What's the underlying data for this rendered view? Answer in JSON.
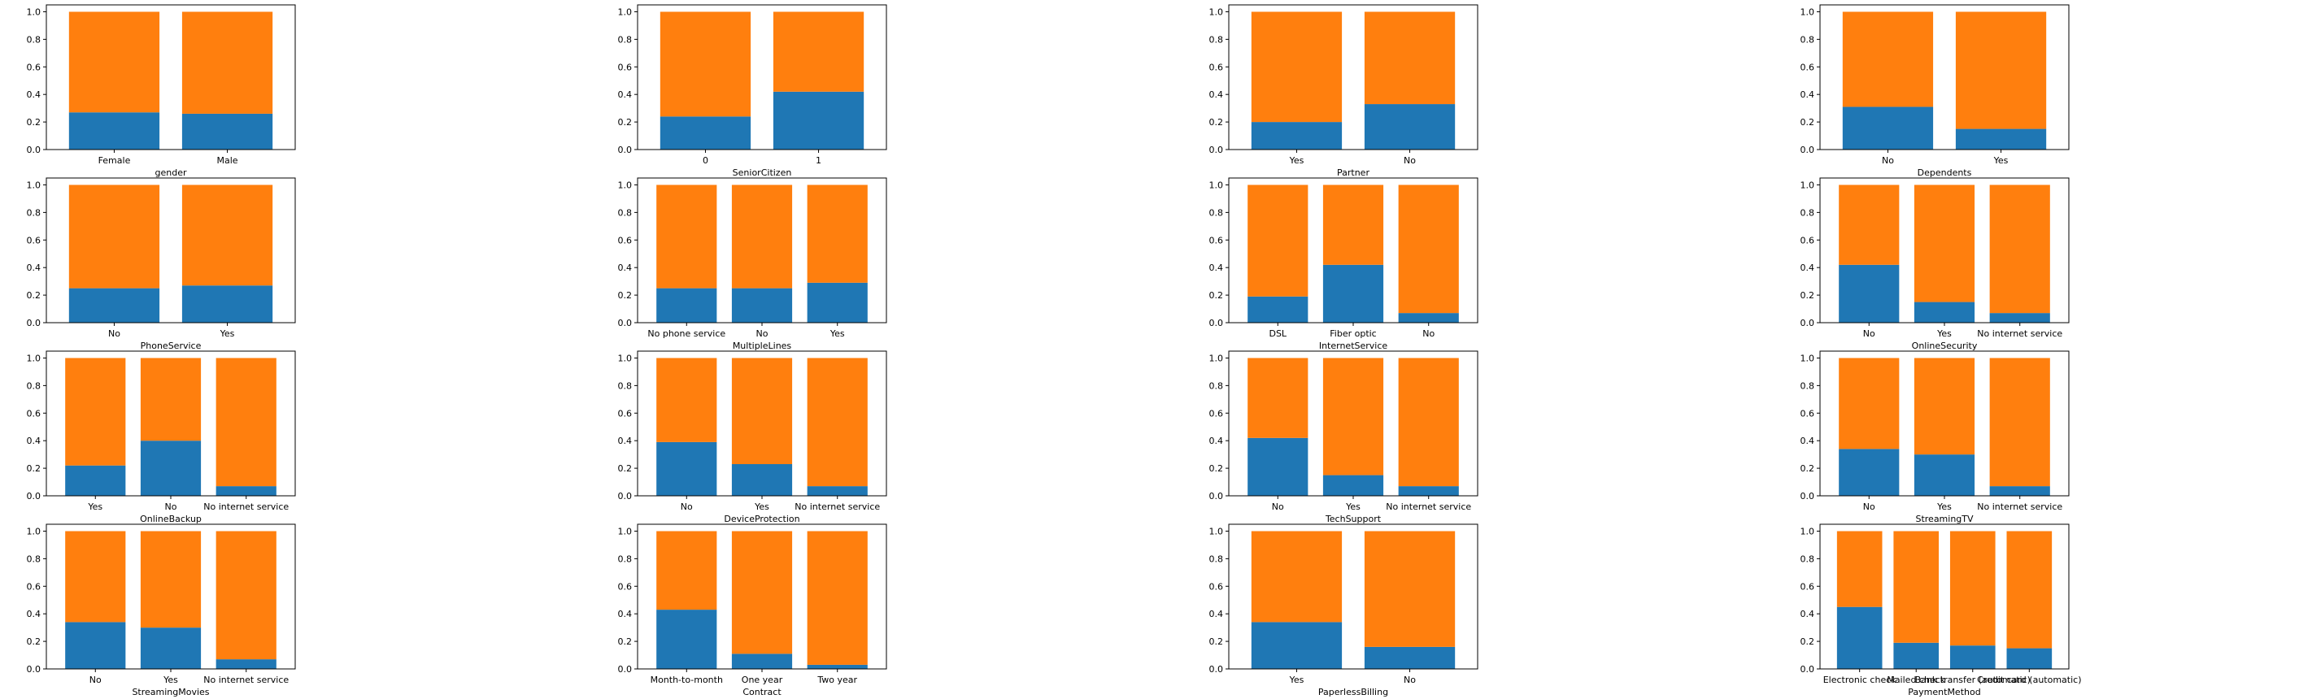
{
  "colors": {
    "series_0": "#1f77b4",
    "series_1": "#ff7f0e"
  },
  "chart_data": [
    {
      "type": "bar",
      "stacked": true,
      "xlabel": "gender",
      "categories": [
        "Female",
        "Male"
      ],
      "ylim": [
        0,
        1.05
      ],
      "yticks": [
        "0.0",
        "0.2",
        "0.4",
        "0.6",
        "0.8",
        "1.0"
      ],
      "series": [
        {
          "values": [
            0.27,
            0.26
          ]
        },
        {
          "values": [
            0.73,
            0.74
          ]
        }
      ]
    },
    {
      "type": "bar",
      "stacked": true,
      "xlabel": "SeniorCitizen",
      "categories": [
        "0",
        "1"
      ],
      "ylim": [
        0,
        1.05
      ],
      "yticks": [
        "0.0",
        "0.2",
        "0.4",
        "0.6",
        "0.8",
        "1.0"
      ],
      "series": [
        {
          "values": [
            0.24,
            0.42
          ]
        },
        {
          "values": [
            0.76,
            0.58
          ]
        }
      ]
    },
    {
      "type": "bar",
      "stacked": true,
      "xlabel": "Partner",
      "categories": [
        "Yes",
        "No"
      ],
      "ylim": [
        0,
        1.05
      ],
      "yticks": [
        "0.0",
        "0.2",
        "0.4",
        "0.6",
        "0.8",
        "1.0"
      ],
      "series": [
        {
          "values": [
            0.2,
            0.33
          ]
        },
        {
          "values": [
            0.8,
            0.67
          ]
        }
      ]
    },
    {
      "type": "bar",
      "stacked": true,
      "xlabel": "Dependents",
      "categories": [
        "No",
        "Yes"
      ],
      "ylim": [
        0,
        1.05
      ],
      "yticks": [
        "0.0",
        "0.2",
        "0.4",
        "0.6",
        "0.8",
        "1.0"
      ],
      "series": [
        {
          "values": [
            0.31,
            0.15
          ]
        },
        {
          "values": [
            0.69,
            0.85
          ]
        }
      ]
    },
    {
      "type": "bar",
      "stacked": true,
      "xlabel": "PhoneService",
      "categories": [
        "No",
        "Yes"
      ],
      "ylim": [
        0,
        1.05
      ],
      "yticks": [
        "0.0",
        "0.2",
        "0.4",
        "0.6",
        "0.8",
        "1.0"
      ],
      "series": [
        {
          "values": [
            0.25,
            0.27
          ]
        },
        {
          "values": [
            0.75,
            0.73
          ]
        }
      ]
    },
    {
      "type": "bar",
      "stacked": true,
      "xlabel": "MultipleLines",
      "categories": [
        "No phone service",
        "No",
        "Yes"
      ],
      "ylim": [
        0,
        1.05
      ],
      "yticks": [
        "0.0",
        "0.2",
        "0.4",
        "0.6",
        "0.8",
        "1.0"
      ],
      "series": [
        {
          "values": [
            0.25,
            0.25,
            0.29
          ]
        },
        {
          "values": [
            0.75,
            0.75,
            0.71
          ]
        }
      ]
    },
    {
      "type": "bar",
      "stacked": true,
      "xlabel": "InternetService",
      "categories": [
        "DSL",
        "Fiber optic",
        "No"
      ],
      "ylim": [
        0,
        1.05
      ],
      "yticks": [
        "0.0",
        "0.2",
        "0.4",
        "0.6",
        "0.8",
        "1.0"
      ],
      "series": [
        {
          "values": [
            0.19,
            0.42,
            0.07
          ]
        },
        {
          "values": [
            0.81,
            0.58,
            0.93
          ]
        }
      ]
    },
    {
      "type": "bar",
      "stacked": true,
      "xlabel": "OnlineSecurity",
      "categories": [
        "No",
        "Yes",
        "No internet service"
      ],
      "ylim": [
        0,
        1.05
      ],
      "yticks": [
        "0.0",
        "0.2",
        "0.4",
        "0.6",
        "0.8",
        "1.0"
      ],
      "series": [
        {
          "values": [
            0.42,
            0.15,
            0.07
          ]
        },
        {
          "values": [
            0.58,
            0.85,
            0.93
          ]
        }
      ]
    },
    {
      "type": "bar",
      "stacked": true,
      "xlabel": "OnlineBackup",
      "categories": [
        "Yes",
        "No",
        "No internet service"
      ],
      "ylim": [
        0,
        1.05
      ],
      "yticks": [
        "0.0",
        "0.2",
        "0.4",
        "0.6",
        "0.8",
        "1.0"
      ],
      "series": [
        {
          "values": [
            0.22,
            0.4,
            0.07
          ]
        },
        {
          "values": [
            0.78,
            0.6,
            0.93
          ]
        }
      ]
    },
    {
      "type": "bar",
      "stacked": true,
      "xlabel": "DeviceProtection",
      "categories": [
        "No",
        "Yes",
        "No internet service"
      ],
      "ylim": [
        0,
        1.05
      ],
      "yticks": [
        "0.0",
        "0.2",
        "0.4",
        "0.6",
        "0.8",
        "1.0"
      ],
      "series": [
        {
          "values": [
            0.39,
            0.23,
            0.07
          ]
        },
        {
          "values": [
            0.61,
            0.77,
            0.93
          ]
        }
      ]
    },
    {
      "type": "bar",
      "stacked": true,
      "xlabel": "TechSupport",
      "categories": [
        "No",
        "Yes",
        "No internet service"
      ],
      "ylim": [
        0,
        1.05
      ],
      "yticks": [
        "0.0",
        "0.2",
        "0.4",
        "0.6",
        "0.8",
        "1.0"
      ],
      "series": [
        {
          "values": [
            0.42,
            0.15,
            0.07
          ]
        },
        {
          "values": [
            0.58,
            0.85,
            0.93
          ]
        }
      ]
    },
    {
      "type": "bar",
      "stacked": true,
      "xlabel": "StreamingTV",
      "categories": [
        "No",
        "Yes",
        "No internet service"
      ],
      "ylim": [
        0,
        1.05
      ],
      "yticks": [
        "0.0",
        "0.2",
        "0.4",
        "0.6",
        "0.8",
        "1.0"
      ],
      "series": [
        {
          "values": [
            0.34,
            0.3,
            0.07
          ]
        },
        {
          "values": [
            0.66,
            0.7,
            0.93
          ]
        }
      ]
    },
    {
      "type": "bar",
      "stacked": true,
      "xlabel": "StreamingMovies",
      "categories": [
        "No",
        "Yes",
        "No internet service"
      ],
      "ylim": [
        0,
        1.05
      ],
      "yticks": [
        "0.0",
        "0.2",
        "0.4",
        "0.6",
        "0.8",
        "1.0"
      ],
      "series": [
        {
          "values": [
            0.34,
            0.3,
            0.07
          ]
        },
        {
          "values": [
            0.66,
            0.7,
            0.93
          ]
        }
      ]
    },
    {
      "type": "bar",
      "stacked": true,
      "xlabel": "Contract",
      "categories": [
        "Month-to-month",
        "One year",
        "Two year"
      ],
      "ylim": [
        0,
        1.05
      ],
      "yticks": [
        "0.0",
        "0.2",
        "0.4",
        "0.6",
        "0.8",
        "1.0"
      ],
      "series": [
        {
          "values": [
            0.43,
            0.11,
            0.03
          ]
        },
        {
          "values": [
            0.57,
            0.89,
            0.97
          ]
        }
      ]
    },
    {
      "type": "bar",
      "stacked": true,
      "xlabel": "PaperlessBilling",
      "categories": [
        "Yes",
        "No"
      ],
      "ylim": [
        0,
        1.05
      ],
      "yticks": [
        "0.0",
        "0.2",
        "0.4",
        "0.6",
        "0.8",
        "1.0"
      ],
      "series": [
        {
          "values": [
            0.34,
            0.16
          ]
        },
        {
          "values": [
            0.66,
            0.84
          ]
        }
      ]
    },
    {
      "type": "bar",
      "stacked": true,
      "xlabel": "PaymentMethod",
      "categories": [
        "Electronic check",
        "Mailed check",
        "Bank transfer (automatic)",
        "Credit card (automatic)"
      ],
      "ylim": [
        0,
        1.05
      ],
      "yticks": [
        "0.0",
        "0.2",
        "0.4",
        "0.6",
        "0.8",
        "1.0"
      ],
      "series": [
        {
          "values": [
            0.45,
            0.19,
            0.17,
            0.15
          ]
        },
        {
          "values": [
            0.55,
            0.81,
            0.83,
            0.85
          ]
        }
      ]
    }
  ]
}
